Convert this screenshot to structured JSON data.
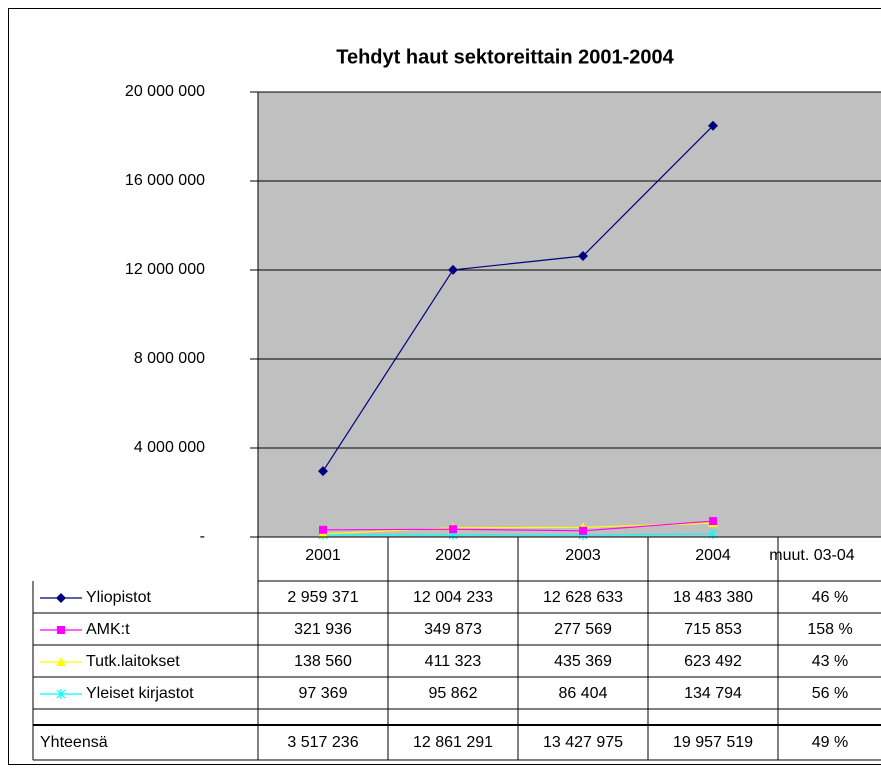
{
  "chart_data": {
    "type": "line",
    "title": "Tehdyt haut sektoreittain 2001-2004",
    "categories": [
      "2001",
      "2002",
      "2003",
      "2004"
    ],
    "ylim": [
      0,
      20000000
    ],
    "yticks": [
      {
        "value": 0,
        "label": "-"
      },
      {
        "value": 4000000,
        "label": "4 000 000"
      },
      {
        "value": 8000000,
        "label": "8 000 000"
      },
      {
        "value": 12000000,
        "label": "12 000 000"
      },
      {
        "value": 16000000,
        "label": "16 000 000"
      },
      {
        "value": 20000000,
        "label": "20 000 000"
      }
    ],
    "grid": true,
    "change_header": "muut. 03-04",
    "series": [
      {
        "name": "Yliopistot",
        "color": "#000080",
        "marker": "diamond",
        "values": [
          2959371,
          12004233,
          12628633,
          18483380
        ],
        "value_labels": [
          "2 959 371",
          "12 004 233",
          "12 628 633",
          "18 483 380"
        ],
        "change": 46,
        "change_label": "46 %"
      },
      {
        "name": "AMK:t",
        "color": "#ff00ff",
        "marker": "square",
        "values": [
          321936,
          349873,
          277569,
          715853
        ],
        "value_labels": [
          "321 936",
          "349 873",
          "277 569",
          "715 853"
        ],
        "change": 158,
        "change_label": "158 %"
      },
      {
        "name": "Tutk.laitokset",
        "color": "#ffff00",
        "marker": "triangle",
        "values": [
          138560,
          411323,
          435369,
          623492
        ],
        "value_labels": [
          "138 560",
          "411 323",
          "435 369",
          "623 492"
        ],
        "change": 43,
        "change_label": "43 %"
      },
      {
        "name": "Yleiset kirjastot",
        "color": "#00ffff",
        "marker": "star",
        "values": [
          97369,
          95862,
          86404,
          134794
        ],
        "value_labels": [
          "97 369",
          "95 862",
          "86 404",
          "134 794"
        ],
        "change": 56,
        "change_label": "56 %"
      }
    ],
    "total": {
      "name": "Yhteensä",
      "values": [
        3517236,
        12861291,
        13427975,
        19957519
      ],
      "value_labels": [
        "3 517 236",
        "12 861 291",
        "13 427 975",
        "19 957 519"
      ],
      "change": 49,
      "change_label": "49 %"
    }
  }
}
